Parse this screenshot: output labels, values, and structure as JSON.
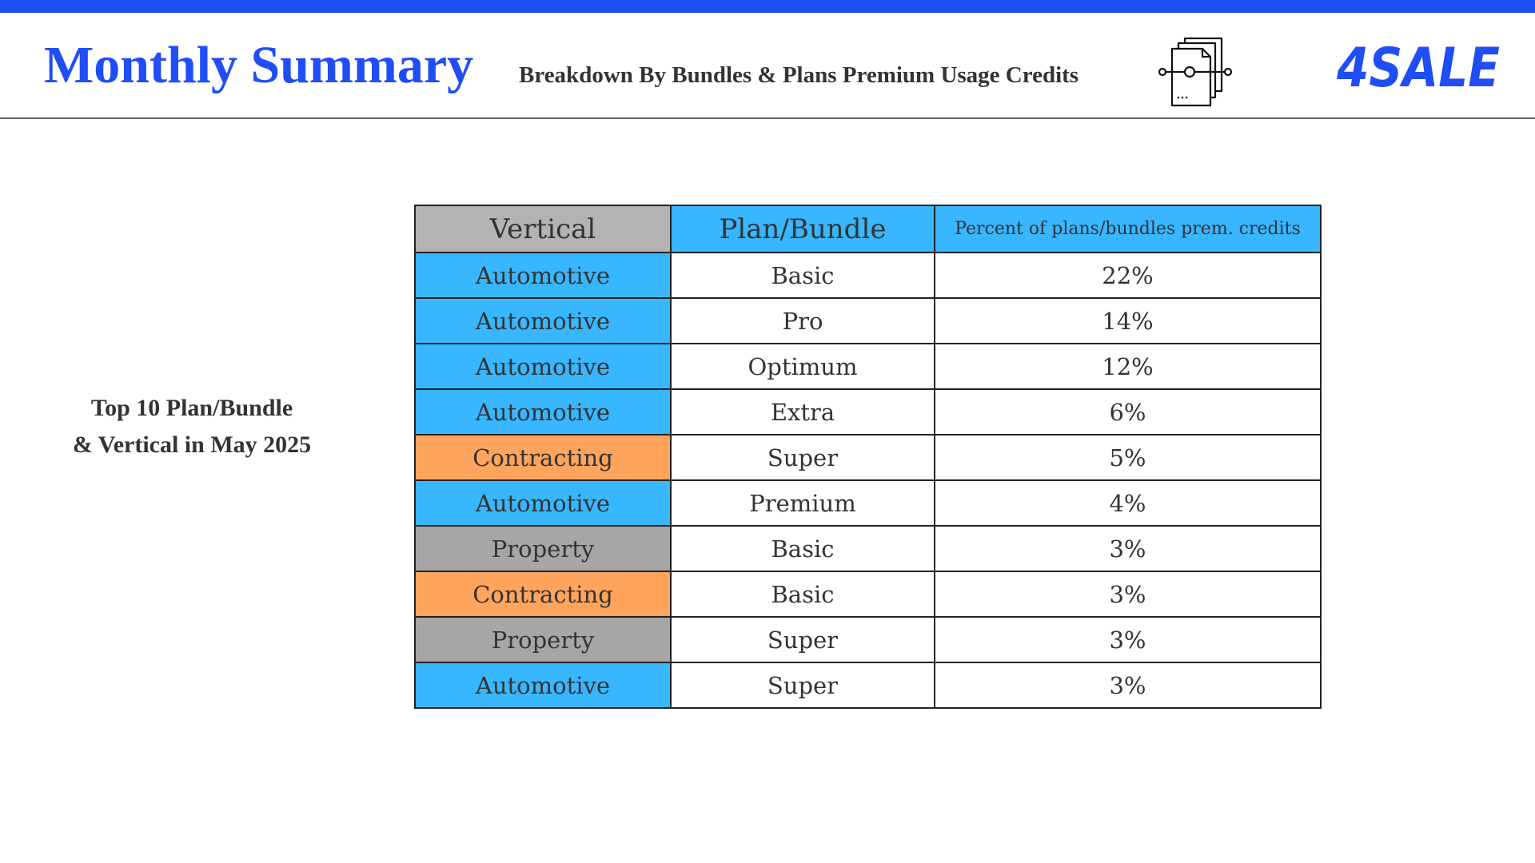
{
  "header": {
    "title": "Monthly Summary",
    "subtitle": "Breakdown By Bundles & Plans Premium Usage Credits",
    "doc_icon": "document-stack-icon",
    "logo_text": "4SALE",
    "colors": {
      "top_bar": "#1f4ef5",
      "title": "#1f4ef5",
      "logo": "#1f4ef5"
    }
  },
  "side_caption": {
    "line1": "Top 10 Plan/Bundle",
    "line2": "& Vertical in May 2025"
  },
  "table": {
    "headers": {
      "vertical": "Vertical",
      "plan": "Plan/Bundle",
      "percent": "Percent of plans/bundles prem. credits"
    },
    "vertical_colors": {
      "Automotive": "#38b6ff",
      "Contracting": "#ffa45c",
      "Property": "#a6a6a6"
    },
    "rows": [
      {
        "vertical": "Automotive",
        "plan": "Basic",
        "percent": "22%"
      },
      {
        "vertical": "Automotive",
        "plan": "Pro",
        "percent": "14%"
      },
      {
        "vertical": "Automotive",
        "plan": "Optimum",
        "percent": "12%"
      },
      {
        "vertical": "Automotive",
        "plan": "Extra",
        "percent": "6%"
      },
      {
        "vertical": "Contracting",
        "plan": "Super",
        "percent": "5%"
      },
      {
        "vertical": "Automotive",
        "plan": "Premium",
        "percent": "4%"
      },
      {
        "vertical": "Property",
        "plan": "Basic",
        "percent": "3%"
      },
      {
        "vertical": "Contracting",
        "plan": "Basic",
        "percent": "3%"
      },
      {
        "vertical": "Property",
        "plan": "Super",
        "percent": "3%"
      },
      {
        "vertical": "Automotive",
        "plan": "Super",
        "percent": "3%"
      }
    ]
  }
}
